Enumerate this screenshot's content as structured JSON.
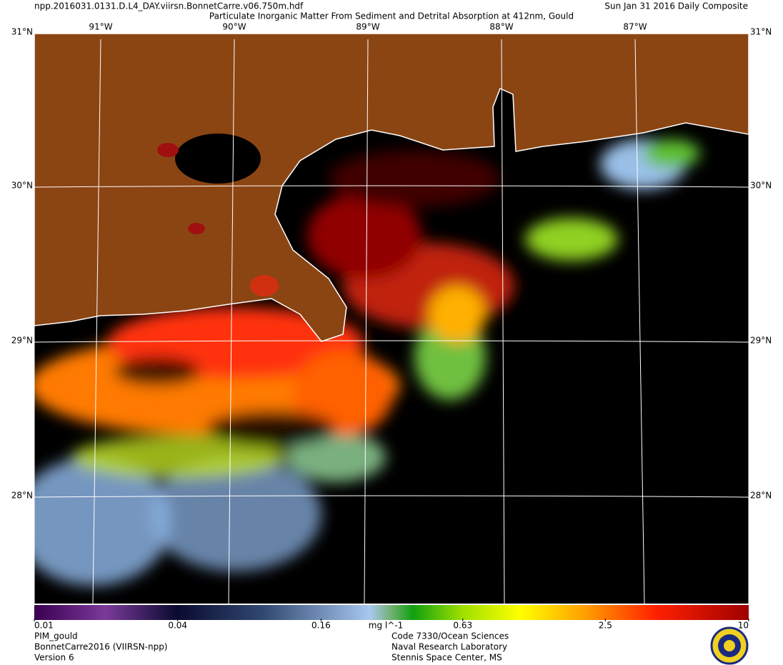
{
  "header": {
    "file": "npp.2016031.0131.D.L4_DAY.viirsn.BonnetCarre.v06.750m.hdf",
    "title": "Particulate Inorganic Matter From Sediment and Detrital Absorption at 412nm, Gould",
    "date": "Sun Jan 31 2016 Daily Composite"
  },
  "map": {
    "lon_labels": [
      "91°W",
      "90°W",
      "89°W",
      "88°W",
      "87°W"
    ],
    "lat_labels": [
      "31°N",
      "30°N",
      "29°N",
      "28°N"
    ]
  },
  "colorbar": {
    "unit": "mg l^-1",
    "scale": "log",
    "range": [
      0.01,
      10
    ],
    "ticks": [
      0.01,
      0.04,
      0.16,
      0.63,
      2.5,
      10
    ]
  },
  "footer": {
    "left": [
      "PIM_gould",
      "BonnetCarre2016 (VIIRSN-npp)",
      "Version 6"
    ],
    "center": [
      "Code 7330/Ocean Sciences",
      "Naval Research Laboratory",
      "Stennis Space Center, MS"
    ]
  }
}
